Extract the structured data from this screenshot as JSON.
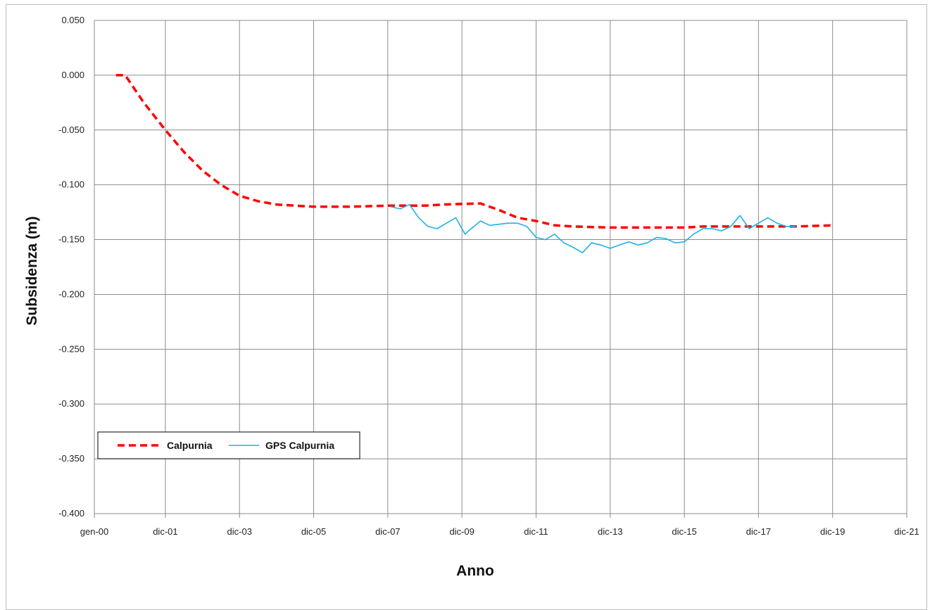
{
  "chart_data": {
    "type": "line",
    "title": "",
    "xlabel": "Anno",
    "ylabel": "Subsidenza (m)",
    "ylim": [
      -0.4,
      0.05
    ],
    "yticks": [
      0.05,
      0.0,
      -0.05,
      -0.1,
      -0.15,
      -0.2,
      -0.25,
      -0.3,
      -0.35,
      -0.4
    ],
    "ytick_labels": [
      "0.050",
      "0.000",
      "-0.050",
      "-0.100",
      "-0.150",
      "-0.200",
      "-0.250",
      "-0.300",
      "-0.350",
      "-0.400"
    ],
    "xlim": [
      "2000-01",
      "2021-12"
    ],
    "xticks": [
      "2000-01",
      "2001-12",
      "2003-12",
      "2005-12",
      "2007-12",
      "2009-12",
      "2011-12",
      "2013-12",
      "2015-12",
      "2017-12",
      "2019-12",
      "2021-12"
    ],
    "xtick_labels": [
      "gen-00",
      "dic-01",
      "dic-03",
      "dic-05",
      "dic-07",
      "dic-09",
      "dic-11",
      "dic-13",
      "dic-15",
      "dic-17",
      "dic-19",
      "dic-21"
    ],
    "grid": true,
    "legend": "lower-left",
    "series": [
      {
        "name": "Calpurnia",
        "style": "dashed",
        "color": "#ff0000",
        "points": [
          [
            "2000-08",
            0.0
          ],
          [
            "2000-11",
            0.0
          ],
          [
            "2001-05",
            -0.025
          ],
          [
            "2001-12",
            -0.05
          ],
          [
            "2002-06",
            -0.07
          ],
          [
            "2002-12",
            -0.087
          ],
          [
            "2003-06",
            -0.1
          ],
          [
            "2003-12",
            -0.11
          ],
          [
            "2004-06",
            -0.115
          ],
          [
            "2004-12",
            -0.118
          ],
          [
            "2005-06",
            -0.119
          ],
          [
            "2005-12",
            -0.12
          ],
          [
            "2006-12",
            -0.12
          ],
          [
            "2007-12",
            -0.119
          ],
          [
            "2008-12",
            -0.119
          ],
          [
            "2009-06",
            -0.118
          ],
          [
            "2010-06",
            -0.117
          ],
          [
            "2010-12",
            -0.123
          ],
          [
            "2011-06",
            -0.13
          ],
          [
            "2011-12",
            -0.133
          ],
          [
            "2012-06",
            -0.137
          ],
          [
            "2012-12",
            -0.138
          ],
          [
            "2013-12",
            -0.139
          ],
          [
            "2014-12",
            -0.139
          ],
          [
            "2015-12",
            -0.139
          ],
          [
            "2016-06",
            -0.138
          ],
          [
            "2016-12",
            -0.138
          ],
          [
            "2017-12",
            -0.138
          ],
          [
            "2018-12",
            -0.138
          ],
          [
            "2019-12",
            -0.137
          ]
        ]
      },
      {
        "name": "GPS Calpurnia",
        "style": "solid",
        "color": "#1fb1e8",
        "points": [
          [
            "2008-01",
            -0.12
          ],
          [
            "2008-04",
            -0.122
          ],
          [
            "2008-07",
            -0.118
          ],
          [
            "2008-10",
            -0.13
          ],
          [
            "2009-01",
            -0.138
          ],
          [
            "2009-04",
            -0.14
          ],
          [
            "2009-07",
            -0.135
          ],
          [
            "2009-10",
            -0.13
          ],
          [
            "2010-01",
            -0.145
          ],
          [
            "2010-03",
            -0.14
          ],
          [
            "2010-06",
            -0.133
          ],
          [
            "2010-09",
            -0.137
          ],
          [
            "2010-12",
            -0.136
          ],
          [
            "2011-03",
            -0.135
          ],
          [
            "2011-06",
            -0.135
          ],
          [
            "2011-09",
            -0.138
          ],
          [
            "2011-12",
            -0.148
          ],
          [
            "2012-03",
            -0.15
          ],
          [
            "2012-06",
            -0.145
          ],
          [
            "2012-09",
            -0.153
          ],
          [
            "2012-12",
            -0.157
          ],
          [
            "2013-03",
            -0.162
          ],
          [
            "2013-06",
            -0.153
          ],
          [
            "2013-09",
            -0.155
          ],
          [
            "2013-12",
            -0.158
          ],
          [
            "2014-03",
            -0.155
          ],
          [
            "2014-06",
            -0.152
          ],
          [
            "2014-09",
            -0.155
          ],
          [
            "2014-12",
            -0.153
          ],
          [
            "2015-03",
            -0.148
          ],
          [
            "2015-06",
            -0.149
          ],
          [
            "2015-09",
            -0.153
          ],
          [
            "2015-12",
            -0.152
          ],
          [
            "2016-03",
            -0.145
          ],
          [
            "2016-06",
            -0.14
          ],
          [
            "2016-09",
            -0.14
          ],
          [
            "2016-12",
            -0.142
          ],
          [
            "2017-03",
            -0.138
          ],
          [
            "2017-06",
            -0.128
          ],
          [
            "2017-09",
            -0.14
          ],
          [
            "2017-12",
            -0.135
          ],
          [
            "2018-03",
            -0.13
          ],
          [
            "2018-06",
            -0.135
          ],
          [
            "2018-09",
            -0.138
          ],
          [
            "2018-12",
            -0.138
          ]
        ]
      }
    ]
  }
}
